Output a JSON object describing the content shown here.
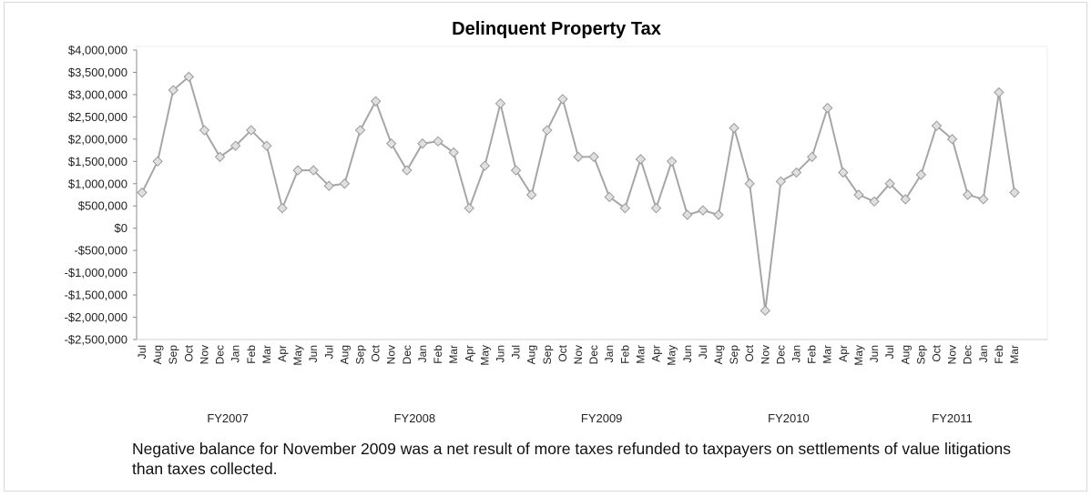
{
  "chart_data": {
    "type": "line",
    "title": "Delinquent Property Tax",
    "xlabel": "",
    "ylabel": "",
    "ylim": [
      -2500000,
      4000000
    ],
    "yticks": [
      4000000,
      3500000,
      3000000,
      2500000,
      2000000,
      1500000,
      1000000,
      500000,
      0,
      -500000,
      -1000000,
      -1500000,
      -2000000,
      -2500000
    ],
    "ytick_labels": [
      "$4,000,000",
      "$3,500,000",
      "$3,000,000",
      "$2,500,000",
      "$2,000,000",
      "$1,500,000",
      "$1,000,000",
      "$500,000",
      "$0",
      "-$500,000",
      "-$1,000,000",
      "-$1,500,000",
      "-$2,000,000",
      "-$2,500,000"
    ],
    "grid": false,
    "legend": "none",
    "line_color": "#a6a6a6",
    "marker_color": "#e0e0e0",
    "categories": [
      "Jul",
      "Aug",
      "Sep",
      "Oct",
      "Nov",
      "Dec",
      "Jan",
      "Feb",
      "Mar",
      "Apr",
      "May",
      "Jun",
      "Jul",
      "Aug",
      "Sep",
      "Oct",
      "Nov",
      "Dec",
      "Jan",
      "Feb",
      "Mar",
      "Apr",
      "May",
      "Jun",
      "Jul",
      "Aug",
      "Sep",
      "Oct",
      "Nov",
      "Dec",
      "Jan",
      "Feb",
      "Mar",
      "Apr",
      "May",
      "Jun",
      "Jul",
      "Aug",
      "Sep",
      "Oct",
      "Nov",
      "Dec",
      "Jan",
      "Feb",
      "Mar",
      "Apr",
      "May",
      "Jun",
      "Jul",
      "Aug",
      "Sep",
      "Oct",
      "Nov",
      "Dec",
      "Jan",
      "Feb",
      "Mar"
    ],
    "fiscal_years": [
      "FY2007",
      "FY2008",
      "FY2009",
      "FY2010",
      "FY2011"
    ],
    "series": [
      {
        "values": [
          800000,
          1500000,
          3100000,
          3400000,
          2200000,
          1600000,
          1850000,
          2200000,
          1850000,
          450000,
          1300000,
          1300000,
          950000,
          1000000,
          2200000,
          2850000,
          1900000,
          1300000,
          1900000,
          1950000,
          1700000,
          450000,
          1400000,
          2800000,
          1300000,
          750000,
          2200000,
          2900000,
          1600000,
          1600000,
          700000,
          450000,
          1550000,
          450000,
          1500000,
          300000,
          400000,
          300000,
          2250000,
          1000000,
          -1850000,
          1050000,
          1250000,
          1600000,
          2700000,
          1250000,
          750000,
          600000,
          1000000,
          650000,
          1200000,
          2300000,
          2000000,
          750000,
          650000,
          3050000,
          800000
        ]
      }
    ]
  },
  "note": "Negative balance for November 2009 was a net result of more taxes refunded to taxpayers on settlements of value litigations than taxes collected."
}
